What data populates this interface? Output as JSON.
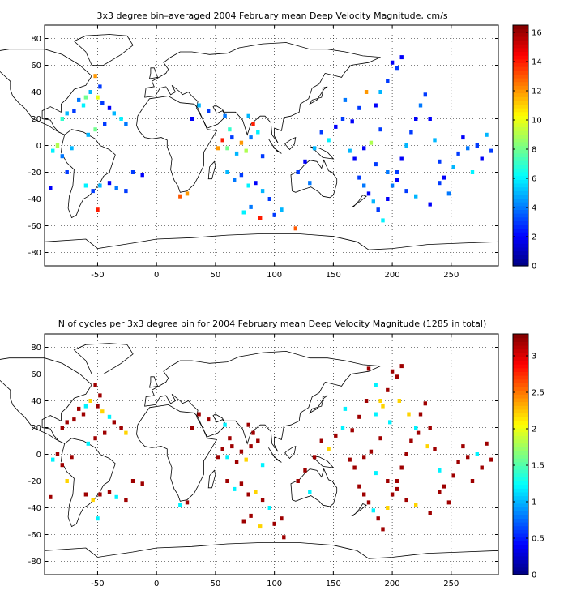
{
  "chart_data": [
    {
      "type": "heatmap",
      "title": "3x3 degree bin–averaged 2004 February mean Deep Velocity Magnitude, cm/s",
      "xlim": [
        -95,
        290
      ],
      "ylim": [
        -90,
        90
      ],
      "xticks": [
        "-50",
        "0",
        "50",
        "100",
        "150",
        "200",
        "250"
      ],
      "yticks": [
        "80",
        "60",
        "40",
        "20",
        "0",
        "-20",
        "-40",
        "-60",
        "-80"
      ],
      "grid": true,
      "colorbar": {
        "range": [
          0,
          16.5
        ],
        "ticks": [
          "16",
          "14",
          "12",
          "10",
          "8",
          "6",
          "4",
          "2",
          "0"
        ],
        "colormap": "jet"
      },
      "cells": [
        [
          -52,
          52,
          12
        ],
        [
          -48,
          44,
          3
        ],
        [
          -56,
          40,
          5
        ],
        [
          -60,
          36,
          8
        ],
        [
          -66,
          34,
          4
        ],
        [
          -62,
          30,
          6
        ],
        [
          -70,
          26,
          3
        ],
        [
          -76,
          24,
          5
        ],
        [
          -80,
          20,
          7
        ],
        [
          -50,
          36,
          10
        ],
        [
          -46,
          32,
          3
        ],
        [
          -40,
          28,
          2
        ],
        [
          -36,
          24,
          5
        ],
        [
          -30,
          20,
          6
        ],
        [
          -26,
          16,
          4
        ],
        [
          -44,
          16,
          3
        ],
        [
          -52,
          12,
          8
        ],
        [
          -58,
          8,
          5
        ],
        [
          -88,
          -4,
          6
        ],
        [
          -84,
          0,
          9
        ],
        [
          -80,
          -8,
          4
        ],
        [
          -76,
          -20,
          3
        ],
        [
          -90,
          -32,
          2
        ],
        [
          -72,
          -2,
          5
        ],
        [
          -60,
          -30,
          6
        ],
        [
          -54,
          -34,
          3
        ],
        [
          -48,
          -30,
          5
        ],
        [
          -40,
          -28,
          2
        ],
        [
          -34,
          -32,
          4
        ],
        [
          -26,
          -34,
          3
        ],
        [
          -50,
          -48,
          14
        ],
        [
          -20,
          -20,
          3
        ],
        [
          -12,
          -22,
          2
        ],
        [
          20,
          -38,
          13
        ],
        [
          26,
          -36,
          12
        ],
        [
          60,
          -20,
          5
        ],
        [
          66,
          -26,
          4
        ],
        [
          72,
          -22,
          3
        ],
        [
          78,
          -30,
          6
        ],
        [
          84,
          -28,
          2
        ],
        [
          90,
          -34,
          5
        ],
        [
          96,
          -40,
          3
        ],
        [
          80,
          -46,
          4
        ],
        [
          74,
          -50,
          6
        ],
        [
          88,
          -54,
          14
        ],
        [
          100,
          -52,
          3
        ],
        [
          106,
          -48,
          5
        ],
        [
          118,
          -62,
          13
        ],
        [
          52,
          -2,
          12
        ],
        [
          56,
          4,
          14
        ],
        [
          60,
          -2,
          8
        ],
        [
          64,
          6,
          3
        ],
        [
          68,
          -6,
          5
        ],
        [
          72,
          2,
          12
        ],
        [
          76,
          -4,
          9
        ],
        [
          80,
          6,
          4
        ],
        [
          86,
          10,
          6
        ],
        [
          90,
          -8,
          3
        ],
        [
          82,
          16,
          14
        ],
        [
          78,
          22,
          5
        ],
        [
          62,
          12,
          7
        ],
        [
          58,
          22,
          4
        ],
        [
          44,
          26,
          3
        ],
        [
          30,
          20,
          2
        ],
        [
          36,
          30,
          5
        ],
        [
          120,
          -20,
          3
        ],
        [
          126,
          -12,
          2
        ],
        [
          130,
          -28,
          4
        ],
        [
          134,
          -2,
          5
        ],
        [
          140,
          10,
          3
        ],
        [
          146,
          4,
          6
        ],
        [
          152,
          14,
          2
        ],
        [
          158,
          20,
          3
        ],
        [
          164,
          -4,
          5
        ],
        [
          168,
          -10,
          2
        ],
        [
          172,
          -24,
          3
        ],
        [
          176,
          -30,
          4
        ],
        [
          180,
          -36,
          2
        ],
        [
          184,
          -42,
          5
        ],
        [
          188,
          -48,
          3
        ],
        [
          192,
          -56,
          6
        ],
        [
          196,
          -40,
          2
        ],
        [
          200,
          -30,
          4
        ],
        [
          204,
          -20,
          3
        ],
        [
          208,
          -10,
          2
        ],
        [
          212,
          0,
          5
        ],
        [
          216,
          10,
          3
        ],
        [
          220,
          20,
          2
        ],
        [
          224,
          30,
          4
        ],
        [
          228,
          38,
          3
        ],
        [
          232,
          20,
          2
        ],
        [
          236,
          4,
          5
        ],
        [
          240,
          -12,
          3
        ],
        [
          244,
          -24,
          2
        ],
        [
          248,
          -36,
          4
        ],
        [
          252,
          -16,
          5
        ],
        [
          256,
          -6,
          3
        ],
        [
          260,
          6,
          2
        ],
        [
          264,
          -2,
          4
        ],
        [
          268,
          -20,
          6
        ],
        [
          272,
          0,
          3
        ],
        [
          276,
          -10,
          2
        ],
        [
          280,
          8,
          5
        ],
        [
          284,
          -4,
          3
        ],
        [
          200,
          62,
          2
        ],
        [
          204,
          58,
          3
        ],
        [
          208,
          66,
          2
        ],
        [
          196,
          48,
          3
        ],
        [
          190,
          40,
          5
        ],
        [
          186,
          30,
          2
        ],
        [
          178,
          40,
          12
        ],
        [
          172,
          28,
          3
        ],
        [
          166,
          18,
          2
        ],
        [
          160,
          34,
          4
        ],
        [
          190,
          12,
          3
        ],
        [
          182,
          2,
          9
        ],
        [
          176,
          -2,
          2
        ],
        [
          186,
          -14,
          3
        ],
        [
          196,
          -20,
          4
        ],
        [
          204,
          -26,
          2
        ],
        [
          212,
          -34,
          3
        ],
        [
          220,
          -38,
          5
        ],
        [
          232,
          -44,
          2
        ],
        [
          240,
          -28,
          3
        ]
      ]
    },
    {
      "type": "heatmap",
      "title": "N of cycles per 3x3 degree bin for 2004 February mean Deep Velocity Magnitude (1285 in total)",
      "xlim": [
        -95,
        290
      ],
      "ylim": [
        -90,
        90
      ],
      "xticks": [
        "-50",
        "0",
        "50",
        "100",
        "150",
        "200",
        "250"
      ],
      "yticks": [
        "80",
        "60",
        "40",
        "20",
        "0",
        "-20",
        "-40",
        "-60",
        "-80"
      ],
      "grid": true,
      "colorbar": {
        "range": [
          0,
          3.3
        ],
        "ticks": [
          "3",
          "2.5",
          "2",
          "1.5",
          "1",
          "0.5",
          "0"
        ],
        "colormap": "jet"
      },
      "cells": [
        [
          -52,
          52,
          3.2
        ],
        [
          -48,
          44,
          3.2
        ],
        [
          -56,
          40,
          2.2
        ],
        [
          -60,
          36,
          1.2
        ],
        [
          -66,
          34,
          3.2
        ],
        [
          -62,
          30,
          3.2
        ],
        [
          -70,
          26,
          3.2
        ],
        [
          -76,
          24,
          3.2
        ],
        [
          -80,
          20,
          3.2
        ],
        [
          -50,
          36,
          3.2
        ],
        [
          -46,
          32,
          2.2
        ],
        [
          -40,
          28,
          1.2
        ],
        [
          -36,
          24,
          3.2
        ],
        [
          -30,
          20,
          3.2
        ],
        [
          -26,
          16,
          2.2
        ],
        [
          -44,
          16,
          3.2
        ],
        [
          -52,
          12,
          3.2
        ],
        [
          -58,
          8,
          1.2
        ],
        [
          -88,
          -4,
          1.2
        ],
        [
          -84,
          0,
          3.2
        ],
        [
          -80,
          -8,
          3.2
        ],
        [
          -76,
          -20,
          2.2
        ],
        [
          -90,
          -32,
          3.2
        ],
        [
          -72,
          -2,
          3.2
        ],
        [
          -60,
          -30,
          3.2
        ],
        [
          -54,
          -34,
          2.2
        ],
        [
          -48,
          -30,
          3.2
        ],
        [
          -40,
          -28,
          3.2
        ],
        [
          -34,
          -32,
          1.2
        ],
        [
          -26,
          -34,
          3.2
        ],
        [
          -50,
          -48,
          1.2
        ],
        [
          -20,
          -20,
          3.2
        ],
        [
          -12,
          -22,
          3.2
        ],
        [
          20,
          -38,
          1.2
        ],
        [
          26,
          -36,
          3.2
        ],
        [
          60,
          -20,
          3.2
        ],
        [
          66,
          -26,
          1.2
        ],
        [
          72,
          -22,
          3.2
        ],
        [
          78,
          -30,
          3.2
        ],
        [
          84,
          -28,
          2.2
        ],
        [
          90,
          -34,
          3.2
        ],
        [
          96,
          -40,
          1.2
        ],
        [
          80,
          -46,
          3.2
        ],
        [
          74,
          -50,
          3.2
        ],
        [
          88,
          -54,
          2.2
        ],
        [
          100,
          -52,
          3.2
        ],
        [
          106,
          -48,
          3.2
        ],
        [
          108,
          -62,
          3.2
        ],
        [
          52,
          -2,
          3.2
        ],
        [
          56,
          4,
          3.2
        ],
        [
          60,
          -2,
          1.2
        ],
        [
          64,
          6,
          3.2
        ],
        [
          68,
          -6,
          3.2
        ],
        [
          72,
          2,
          3.2
        ],
        [
          76,
          -4,
          2.2
        ],
        [
          80,
          6,
          3.2
        ],
        [
          86,
          10,
          3.2
        ],
        [
          90,
          -8,
          1.2
        ],
        [
          82,
          16,
          3.2
        ],
        [
          78,
          22,
          3.2
        ],
        [
          62,
          12,
          3.2
        ],
        [
          58,
          22,
          1.2
        ],
        [
          44,
          26,
          3.2
        ],
        [
          30,
          20,
          3.2
        ],
        [
          36,
          30,
          3.2
        ],
        [
          120,
          -20,
          3.2
        ],
        [
          126,
          -12,
          3.2
        ],
        [
          130,
          -28,
          1.2
        ],
        [
          134,
          -2,
          3.2
        ],
        [
          140,
          10,
          3.2
        ],
        [
          146,
          4,
          2.2
        ],
        [
          152,
          14,
          3.2
        ],
        [
          158,
          20,
          1.2
        ],
        [
          164,
          -4,
          3.2
        ],
        [
          168,
          -10,
          3.2
        ],
        [
          172,
          -24,
          3.2
        ],
        [
          176,
          -30,
          3.2
        ],
        [
          180,
          -36,
          3.2
        ],
        [
          184,
          -42,
          1.2
        ],
        [
          188,
          -48,
          3.2
        ],
        [
          192,
          -56,
          3.2
        ],
        [
          196,
          -40,
          2.2
        ],
        [
          200,
          -30,
          3.2
        ],
        [
          204,
          -20,
          3.2
        ],
        [
          208,
          -10,
          3.2
        ],
        [
          212,
          0,
          3.2
        ],
        [
          216,
          10,
          3.2
        ],
        [
          220,
          20,
          1.2
        ],
        [
          224,
          30,
          3.2
        ],
        [
          228,
          38,
          3.2
        ],
        [
          232,
          20,
          3.2
        ],
        [
          236,
          4,
          3.2
        ],
        [
          240,
          -12,
          1.2
        ],
        [
          244,
          -24,
          3.2
        ],
        [
          248,
          -36,
          3.2
        ],
        [
          252,
          -16,
          3.2
        ],
        [
          256,
          -6,
          3.2
        ],
        [
          260,
          6,
          3.2
        ],
        [
          264,
          -2,
          3.2
        ],
        [
          268,
          -20,
          3.2
        ],
        [
          272,
          0,
          1.2
        ],
        [
          276,
          -10,
          3.2
        ],
        [
          280,
          8,
          3.2
        ],
        [
          284,
          -4,
          3.2
        ],
        [
          200,
          62,
          3.2
        ],
        [
          204,
          58,
          3.2
        ],
        [
          208,
          66,
          3.2
        ],
        [
          196,
          48,
          3.2
        ],
        [
          190,
          40,
          2.2
        ],
        [
          186,
          30,
          1.2
        ],
        [
          178,
          40,
          3.2
        ],
        [
          172,
          28,
          3.2
        ],
        [
          166,
          18,
          3.2
        ],
        [
          160,
          34,
          1.2
        ],
        [
          190,
          12,
          3.2
        ],
        [
          182,
          2,
          3.2
        ],
        [
          176,
          -2,
          3.2
        ],
        [
          186,
          -14,
          1.2
        ],
        [
          196,
          -20,
          3.2
        ],
        [
          204,
          -26,
          3.2
        ],
        [
          212,
          -34,
          3.2
        ],
        [
          220,
          -38,
          2.2
        ],
        [
          232,
          -44,
          3.2
        ],
        [
          240,
          -28,
          3.2
        ],
        [
          180,
          64,
          3.2
        ],
        [
          186,
          52,
          1.2
        ],
        [
          192,
          36,
          2.2
        ],
        [
          198,
          24,
          1.2
        ],
        [
          206,
          40,
          2.2
        ],
        [
          214,
          30,
          2.2
        ],
        [
          222,
          16,
          3.2
        ],
        [
          230,
          6,
          2.2
        ]
      ]
    }
  ]
}
